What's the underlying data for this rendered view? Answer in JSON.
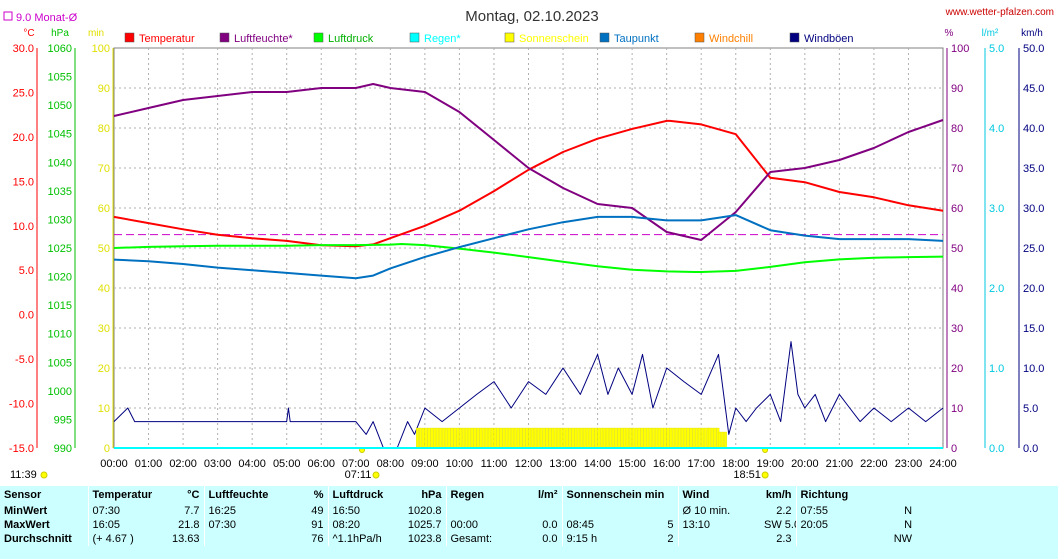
{
  "site_label": "www.wetter-pfalzen.com",
  "chart_data": {
    "type": "line",
    "title": "Montag, 02.10.2023",
    "monthly_avg_label": "9.0 Monat-Ø",
    "monthly_avg_temp": 9.0,
    "axis_units": {
      "temp": "°C",
      "pressure": "hPa",
      "sun": "min",
      "humidity": "%",
      "rain": "l/m²",
      "wind": "km/h"
    },
    "x_ticks": [
      "00:00",
      "01:00",
      "02:00",
      "03:00",
      "04:00",
      "05:00",
      "06:00",
      "07:00",
      "08:00",
      "09:00",
      "10:00",
      "11:00",
      "12:00",
      "13:00",
      "14:00",
      "15:00",
      "16:00",
      "17:00",
      "18:00",
      "19:00",
      "20:00",
      "21:00",
      "22:00",
      "23:00",
      "24:00"
    ],
    "temp_ticks": [
      "30.0",
      "25.0",
      "20.0",
      "15.0",
      "10.0",
      "5.0",
      "0.0",
      "-5.0",
      "-10.0",
      "-15.0"
    ],
    "temp_range": [
      -15,
      30
    ],
    "pressure_ticks": [
      "1060",
      "1055",
      "1050",
      "1045",
      "1040",
      "1035",
      "1030",
      "1025",
      "1020",
      "1015",
      "1010",
      "1005",
      "1000",
      "995",
      "990"
    ],
    "pressure_range": [
      990,
      1060
    ],
    "sun_ticks": [
      "100",
      "90",
      "80",
      "70",
      "60",
      "50",
      "40",
      "30",
      "20",
      "10",
      "0"
    ],
    "sun_range": [
      0,
      100
    ],
    "humidity_ticks": [
      "100",
      "90",
      "80",
      "70",
      "60",
      "50",
      "40",
      "30",
      "20",
      "10",
      "0"
    ],
    "humidity_range": [
      0,
      100
    ],
    "rain_ticks": [
      "5.0",
      "4.0",
      "3.0",
      "2.0",
      "1.0",
      "0.0"
    ],
    "rain_range": [
      0,
      5
    ],
    "wind_ticks": [
      "50.0",
      "45.0",
      "40.0",
      "35.0",
      "30.0",
      "25.0",
      "20.0",
      "15.0",
      "10.0",
      "5.0",
      "0.0"
    ],
    "wind_range": [
      0,
      50
    ],
    "sunrise": "07:11",
    "sunset": "18:51",
    "moon_label": "11:39",
    "legend": [
      {
        "name": "Temperatur",
        "color": "#ff0000"
      },
      {
        "name": "Luftfeuchte*",
        "color": "#800080"
      },
      {
        "name": "Luftdruck",
        "color": "#00ff00"
      },
      {
        "name": "Regen*",
        "color": "#00ffff"
      },
      {
        "name": "Sonnenschein",
        "color": "#ffff00"
      },
      {
        "name": "Taupunkt",
        "color": "#0070c0"
      },
      {
        "name": "Windchill",
        "color": "#ff8000"
      },
      {
        "name": "Windböen",
        "color": "#000080"
      }
    ],
    "series": [
      {
        "name": "Temperatur",
        "axis": "temp",
        "color": "#ff0000",
        "x": [
          0,
          1,
          2,
          3,
          4,
          5,
          6,
          7,
          7.5,
          8,
          9,
          10,
          11,
          12,
          13,
          14,
          15,
          16,
          16.1,
          17,
          18,
          19,
          20,
          21,
          22,
          23,
          24
        ],
        "y": [
          11.0,
          10.3,
          9.6,
          9.0,
          8.6,
          8.3,
          7.8,
          7.7,
          7.9,
          8.6,
          10.0,
          11.7,
          13.9,
          16.3,
          18.3,
          19.8,
          20.9,
          21.8,
          21.8,
          21.4,
          20.3,
          15.4,
          14.9,
          13.8,
          13.2,
          12.3,
          11.7
        ]
      },
      {
        "name": "Luftfeuchte*",
        "axis": "humidity",
        "color": "#800080",
        "x": [
          0,
          1,
          2,
          3,
          4,
          5,
          6,
          7,
          7.5,
          8,
          9,
          10,
          11,
          12,
          13,
          14,
          15,
          16,
          17,
          18,
          19,
          20,
          21,
          22,
          23,
          24
        ],
        "y": [
          83,
          85,
          87,
          88,
          89,
          89,
          90,
          90,
          91,
          90,
          89,
          84,
          77,
          70,
          65,
          61,
          60,
          54,
          52,
          59,
          69,
          70,
          72,
          75,
          79,
          82
        ]
      },
      {
        "name": "Luftdruck",
        "axis": "pressure",
        "color": "#00ff00",
        "x": [
          0,
          1,
          2,
          3,
          4,
          5,
          6,
          7,
          8,
          8.33,
          9,
          10,
          11,
          12,
          13,
          14,
          15,
          16,
          16.83,
          17,
          18,
          19,
          20,
          21,
          22,
          23,
          24
        ],
        "y": [
          1025.0,
          1025.2,
          1025.3,
          1025.4,
          1025.4,
          1025.4,
          1025.5,
          1025.5,
          1025.6,
          1025.7,
          1025.5,
          1024.9,
          1024.2,
          1023.4,
          1022.6,
          1021.8,
          1021.2,
          1020.9,
          1020.8,
          1020.8,
          1021.0,
          1021.7,
          1022.5,
          1023.0,
          1023.3,
          1023.4,
          1023.5
        ]
      },
      {
        "name": "Taupunkt",
        "axis": "temp",
        "color": "#0070c0",
        "x": [
          0,
          1,
          2,
          3,
          4,
          5,
          6,
          7,
          7.5,
          8,
          9,
          10,
          11,
          12,
          13,
          14,
          15,
          16,
          17,
          18,
          19,
          20,
          21,
          22,
          23,
          24
        ],
        "y": [
          6.2,
          6.0,
          5.7,
          5.3,
          5.0,
          4.7,
          4.4,
          4.1,
          4.4,
          5.2,
          6.5,
          7.6,
          8.6,
          9.6,
          10.4,
          11.0,
          11.0,
          10.6,
          10.6,
          11.2,
          9.5,
          8.9,
          8.5,
          8.5,
          8.5,
          8.3
        ]
      },
      {
        "name": "Windböen",
        "axis": "wind",
        "color": "#000080",
        "x": [
          0,
          0.4,
          0.6,
          5,
          5.05,
          5.1,
          7,
          7.3,
          7.5,
          7.8,
          8,
          8.2,
          8.5,
          8.7,
          9,
          9.5,
          10,
          10.5,
          11,
          11.5,
          12,
          12.5,
          13,
          13.5,
          14,
          14.3,
          14.6,
          15,
          15.3,
          15.6,
          16,
          16.5,
          17,
          17.5,
          17.8,
          18,
          18.3,
          18.6,
          19,
          19.3,
          19.6,
          19.8,
          20,
          20.3,
          20.6,
          21,
          21.3,
          21.6,
          22,
          22.5,
          23,
          23.5,
          24
        ],
        "y": [
          3.3,
          5.0,
          3.3,
          3.3,
          5.0,
          3.3,
          3.3,
          1.7,
          3.3,
          0,
          0,
          0,
          3.3,
          1.7,
          5.0,
          3.3,
          5.0,
          6.7,
          8.3,
          5.0,
          8.3,
          6.7,
          10.0,
          6.7,
          11.7,
          6.7,
          10.0,
          6.7,
          11.7,
          5.0,
          10.0,
          8.3,
          6.7,
          11.7,
          1.7,
          5.0,
          3.3,
          5.0,
          6.7,
          3.3,
          13.3,
          6.7,
          5.0,
          6.7,
          3.3,
          6.7,
          5.0,
          3.3,
          5.0,
          3.3,
          5.0,
          3.3,
          5.0
        ]
      },
      {
        "name": "Sonnenschein",
        "axis": "sun",
        "color": "#ffff00",
        "type": "bar",
        "x": [
          8.75,
          17.2,
          17.5,
          17.7
        ],
        "y": [
          5,
          5,
          4,
          2
        ]
      },
      {
        "name": "Regen*",
        "axis": "rain",
        "color": "#00ffff",
        "x": [
          0,
          24
        ],
        "y": [
          0,
          0
        ]
      }
    ]
  },
  "summary": {
    "header": [
      "Sensor",
      "Temperatur",
      "°C",
      "Luftfeuchte",
      "%",
      "Luftdruck",
      "hPa",
      "Regen",
      "l/m²",
      "Sonnenschein min",
      "Windkm/h",
      "Richtung"
    ],
    "rows": [
      {
        "label": "MinWert",
        "cells": [
          "07:30",
          "7.7",
          "16:25",
          "49",
          "16:50",
          "1020.8",
          "",
          "",
          "",
          "",
          "Ø 10 min.",
          "2.2",
          "07:55",
          "N"
        ]
      },
      {
        "label": "MaxWert",
        "cells": [
          "16:05",
          "21.8",
          "07:30",
          "91",
          "08:20",
          "1025.7",
          "00:00",
          "0.0",
          "08:45",
          "5",
          "13:10",
          "SW 5.0",
          "20:05",
          "N"
        ]
      },
      {
        "label": "Durchschnitt",
        "cells": [
          "(+ 4.67 )",
          "13.63",
          "",
          "76",
          "^1.1hPa/h",
          "1023.8",
          "Gesamt:",
          "0.0",
          "9:15 h",
          "2",
          "",
          "2.3",
          "",
          "NW"
        ]
      }
    ],
    "wind_unit": "km/h",
    "wind_title": "Wind"
  }
}
